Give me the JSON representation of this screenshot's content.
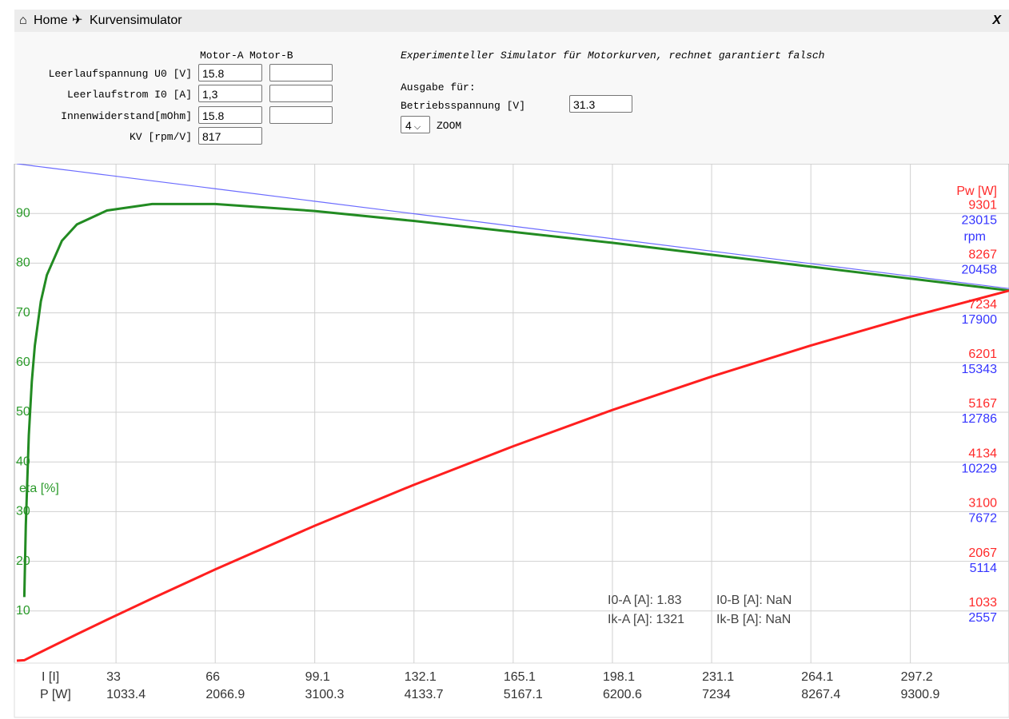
{
  "header": {
    "home": "Home",
    "page": "Kurvensimulator",
    "close": "X"
  },
  "form": {
    "columns": [
      "Motor-A",
      "Motor-B"
    ],
    "rows": [
      {
        "label": "Leerlaufspannung U0 [V]",
        "motor_a": "15.8"
      },
      {
        "label": "Leerlaufstrom I0 [A]",
        "motor_a": "1,3"
      },
      {
        "label": "Innenwiderstand[mOhm]",
        "motor_a": "15.8"
      },
      {
        "label": "KV [rpm/V]",
        "motor_a": "817"
      }
    ],
    "description": "Experimenteller Simulator für Motorkurven, rechnet garantiert falsch",
    "output_heading": "Ausgabe für:",
    "voltage_label": "Betriebsspannung [V]",
    "voltage": "31.3",
    "zoom": "4",
    "zoom_label": "ZOOM"
  },
  "chart_data": {
    "type": "line",
    "xlabel": "I [I]",
    "x2label": "P [W]",
    "ylabel": "eta [%]",
    "y2label": "Pw [W]",
    "y3label": "rpm",
    "x": [
      0,
      2.5,
      3,
      4,
      5,
      6,
      8,
      10,
      15,
      20,
      30,
      45,
      66,
      99,
      132,
      165,
      198,
      231,
      264,
      297,
      330
    ],
    "series": [
      {
        "name": "eta",
        "color": "#228b22",
        "axis": "y",
        "values": [
          null,
          12.8,
          27.3,
          45.4,
          56.2,
          63.4,
          72.3,
          77.6,
          84.5,
          87.8,
          90.6,
          91.9,
          91.9,
          90.5,
          88.5,
          86.3,
          84.1,
          81.7,
          79.3,
          76.9,
          74.5
        ]
      },
      {
        "name": "Pw",
        "color": "#ff1f1f",
        "axis": "y2",
        "values": [
          0,
          10,
          26,
          57,
          88,
          119,
          181,
          243,
          397,
          550,
          851,
          1294,
          1898,
          2804,
          3656,
          4457,
          5212,
          5907,
          6553,
          7149,
          7695
        ]
      },
      {
        "name": "rpm",
        "color": "#6b6bff",
        "axis": "y3",
        "values": [
          25572,
          25523,
          25514,
          25494,
          25475,
          25455,
          25416,
          25377,
          25280,
          25183,
          24988,
          24696,
          24288,
          23645,
          23003,
          22361,
          21719,
          21077,
          20435,
          19793,
          19150
        ]
      }
    ],
    "xlim": [
      0,
      330
    ],
    "xticks": [
      33,
      66,
      99.1,
      132.1,
      165.1,
      198.1,
      231.1,
      264.1,
      297.2
    ],
    "x2lim": [
      0,
      10329
    ],
    "x2ticks": [
      1033.4,
      2066.9,
      3100.3,
      4133.7,
      5167.1,
      6200.6,
      7234,
      8267.4,
      9300.9
    ],
    "ylim": [
      0,
      100
    ],
    "yticks": [
      10,
      20,
      30,
      40,
      50,
      60,
      70,
      80,
      90
    ],
    "y2lim": [
      0,
      10334
    ],
    "y2ticks": [
      1033,
      2067,
      3100,
      4134,
      5167,
      6201,
      7234,
      8267,
      9301
    ],
    "y3lim": [
      0,
      25572
    ],
    "y3ticks": [
      2557,
      5114,
      7672,
      10229,
      12786,
      15343,
      17900,
      20458,
      23015
    ],
    "grid": true,
    "annotations": [
      "I0-A [A]: 1.83",
      "I0-B [A]: NaN",
      "Ik-A [A]: 1321",
      "Ik-B [A]: NaN"
    ]
  }
}
